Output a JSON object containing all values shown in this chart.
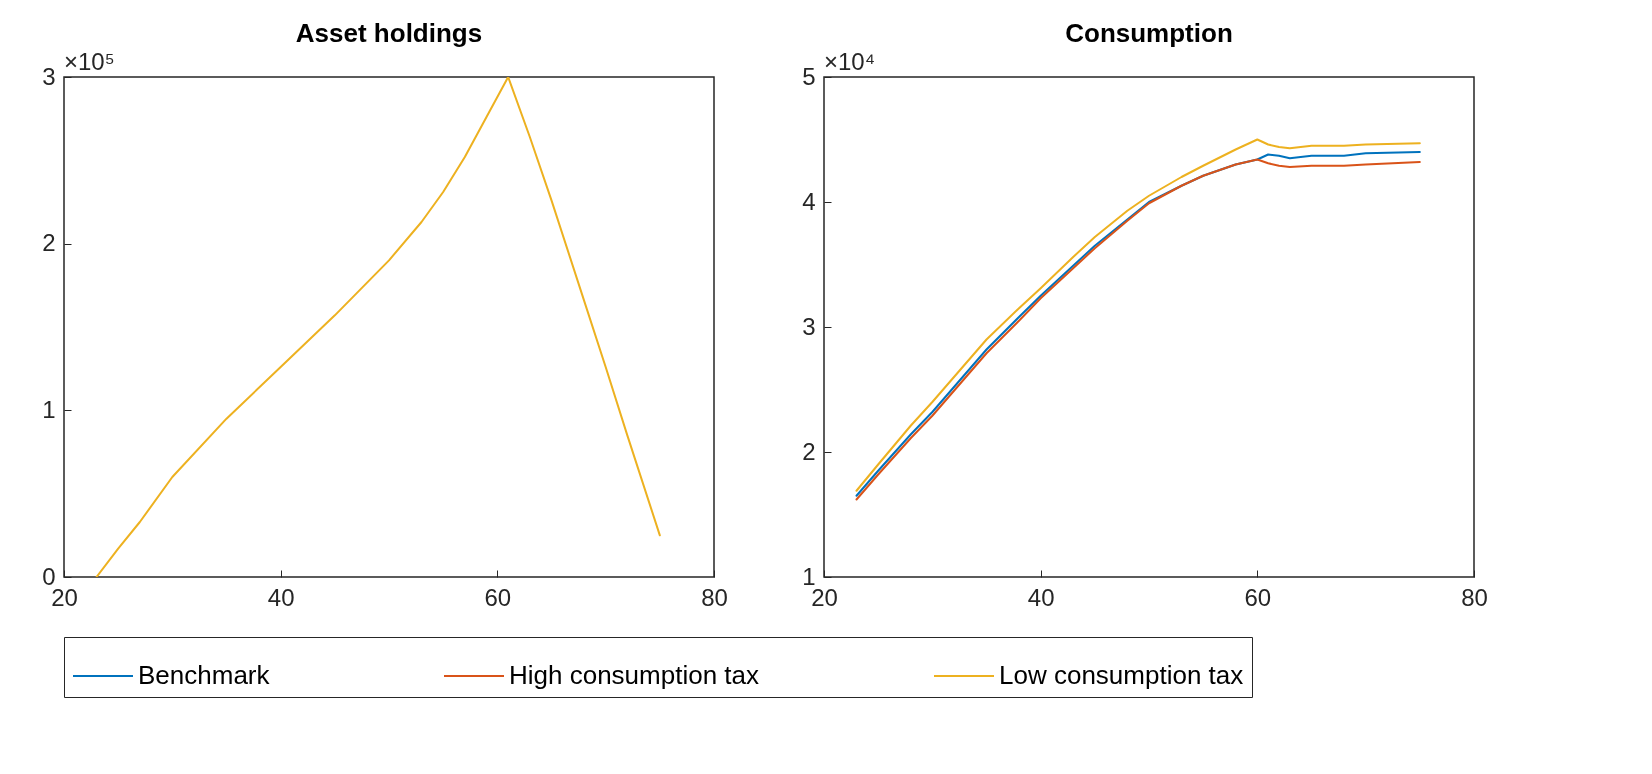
{
  "chart_data": [
    {
      "type": "line",
      "title": "Asset holdings",
      "annotations": [
        "×10⁵"
      ],
      "x": [
        23,
        25,
        27,
        30,
        35,
        40,
        45,
        50,
        53,
        55,
        57,
        59,
        61,
        63,
        65,
        68,
        70,
        72,
        75
      ],
      "xlim": [
        20,
        80
      ],
      "xticks": [
        20,
        40,
        60,
        80
      ],
      "ylim": [
        0,
        3
      ],
      "yticks": [
        0,
        1,
        2,
        3
      ],
      "series": [
        {
          "color": "#edb120",
          "values": [
            0,
            0.17,
            0.33,
            0.6,
            0.95,
            1.26,
            1.57,
            1.9,
            2.13,
            2.31,
            2.52,
            2.76,
            3.0,
            2.64,
            2.26,
            1.66,
            1.26,
            0.85,
            0.25
          ]
        }
      ]
    },
    {
      "type": "line",
      "title": "Consumption",
      "annotations": [
        "×10⁴"
      ],
      "legend": "bottom",
      "x": [
        23,
        25,
        28,
        30,
        33,
        35,
        38,
        40,
        43,
        45,
        48,
        50,
        53,
        55,
        58,
        60,
        61,
        62,
        63,
        65,
        68,
        70,
        75
      ],
      "xlim": [
        20,
        80
      ],
      "xticks": [
        20,
        40,
        60,
        80
      ],
      "ylim": [
        1,
        5
      ],
      "yticks": [
        1,
        2,
        3,
        4,
        5
      ],
      "series": [
        {
          "name": "Benchmark",
          "color": "#0072bd",
          "values": [
            1.65,
            1.85,
            2.14,
            2.32,
            2.62,
            2.82,
            3.08,
            3.25,
            3.49,
            3.65,
            3.86,
            4.0,
            4.13,
            4.21,
            4.3,
            4.34,
            4.38,
            4.37,
            4.35,
            4.37,
            4.37,
            4.39,
            4.4
          ]
        },
        {
          "name": "High consumption tax",
          "color": "#d95319",
          "values": [
            1.62,
            1.82,
            2.11,
            2.29,
            2.59,
            2.79,
            3.05,
            3.23,
            3.47,
            3.63,
            3.85,
            3.99,
            4.13,
            4.21,
            4.3,
            4.34,
            4.31,
            4.29,
            4.28,
            4.29,
            4.29,
            4.3,
            4.32
          ]
        },
        {
          "name": "Low consumption tax",
          "color": "#edb120",
          "values": [
            1.69,
            1.9,
            2.21,
            2.4,
            2.7,
            2.9,
            3.15,
            3.31,
            3.56,
            3.72,
            3.93,
            4.05,
            4.2,
            4.29,
            4.42,
            4.5,
            4.46,
            4.44,
            4.43,
            4.45,
            4.45,
            4.46,
            4.47
          ]
        }
      ]
    }
  ]
}
